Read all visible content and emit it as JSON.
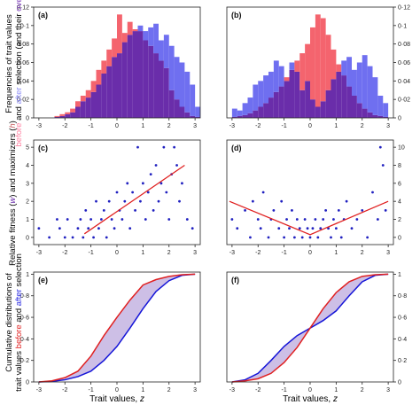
{
  "colors": {
    "before": "#f4646e",
    "after": "#6f6ff0",
    "overlap": "#6a2daa",
    "fitness_line": "#e02020",
    "fitness_points": "#2020c0",
    "band_fill": "#cdbfe6",
    "axis": "#222222"
  },
  "ylabels": {
    "row1_line1": "Frequencies of trait values",
    "row1_before": "before",
    "row1_and": "and",
    "row1_after": "after",
    "row1_rest": "selection (and their",
    "row1_overlap": "overlap",
    "row1_close": ")",
    "row2": "Relative fitness (",
    "row2_w": "w",
    "row2_mid": ") and maximizers (",
    "row2_h": "h",
    "row2_close": ")",
    "row3_line1": "Cumulative distributions of",
    "row3_pre": "trait values",
    "row3_before": "before",
    "row3_and": "and",
    "row3_after": "after",
    "row3_post": "selection"
  },
  "xlabel": "Trait values, z",
  "xlabel_text": "Trait values,",
  "xlabel_z": "z",
  "chart_data": [
    {
      "panel": "(a)",
      "type": "bar",
      "xlim": [
        -3.2,
        3.2
      ],
      "xticks": [
        "-3",
        "-2",
        "-1",
        "0",
        "1",
        "2",
        "3"
      ],
      "ylim": [
        0,
        0.12
      ],
      "yticks": [
        "0",
        "0·02",
        "0·04",
        "0·06",
        "0·08",
        "0·1",
        "0·12"
      ],
      "bin_start": -2.4,
      "bin_width": 0.2,
      "series": [
        {
          "name": "before",
          "values": [
            0.002,
            0.004,
            0.006,
            0.01,
            0.018,
            0.024,
            0.03,
            0.04,
            0.052,
            0.062,
            0.074,
            0.086,
            0.112,
            0.092,
            0.104,
            0.096,
            0.094,
            0.084,
            0.078,
            0.07,
            0.062,
            0.054,
            0.03,
            0.02,
            0.012,
            0.006,
            0.002,
            0.001
          ]
        },
        {
          "name": "after",
          "values": [
            0.001,
            0.002,
            0.004,
            0.006,
            0.012,
            0.018,
            0.022,
            0.028,
            0.036,
            0.048,
            0.056,
            0.066,
            0.07,
            0.082,
            0.09,
            0.094,
            0.1,
            0.094,
            0.098,
            0.102,
            0.084,
            0.09,
            0.078,
            0.066,
            0.06,
            0.05,
            0.036,
            0.012
          ]
        }
      ]
    },
    {
      "panel": "(b)",
      "type": "bar",
      "xlim": [
        -3.2,
        3.2
      ],
      "xticks": [
        "-3",
        "-2",
        "-1",
        "0",
        "1",
        "2",
        "3"
      ],
      "ylim": [
        0,
        0.12
      ],
      "yticks": [
        "0",
        "0·02",
        "0·04",
        "0·06",
        "0·08",
        "0·1",
        "0·12"
      ],
      "bin_start": -3.0,
      "bin_width": 0.2,
      "series": [
        {
          "name": "before",
          "values": [
            0.001,
            0.002,
            0.003,
            0.005,
            0.008,
            0.012,
            0.016,
            0.022,
            0.028,
            0.034,
            0.044,
            0.052,
            0.062,
            0.07,
            0.08,
            0.098,
            0.112,
            0.108,
            0.09,
            0.074,
            0.058,
            0.046,
            0.034,
            0.024,
            0.016,
            0.01,
            0.006,
            0.003,
            0.002,
            0.001
          ]
        },
        {
          "name": "after",
          "values": [
            0.01,
            0.008,
            0.016,
            0.022,
            0.036,
            0.04,
            0.046,
            0.05,
            0.062,
            0.056,
            0.04,
            0.06,
            0.05,
            0.03,
            0.04,
            0.02,
            0.012,
            0.018,
            0.03,
            0.042,
            0.05,
            0.062,
            0.066,
            0.052,
            0.06,
            0.068,
            0.056,
            0.044,
            0.024,
            0.016
          ]
        }
      ]
    },
    {
      "panel": "(c)",
      "type": "scatter",
      "xlim": [
        -3.2,
        3.2
      ],
      "xticks": [
        "-3",
        "-2",
        "-1",
        "0",
        "1",
        "2",
        "3"
      ],
      "ylim": [
        -0.4,
        5.4
      ],
      "yticks": [
        "0",
        "1",
        "2",
        "3",
        "4",
        "5"
      ],
      "points_y_levels": [
        0,
        0.5,
        1,
        1.5,
        2,
        2.5,
        3,
        3.5,
        4,
        5
      ],
      "points": [
        [
          -3.0,
          0.5
        ],
        [
          -2.6,
          0
        ],
        [
          -2.3,
          1
        ],
        [
          -2.2,
          0.5
        ],
        [
          -2.0,
          0
        ],
        [
          -1.9,
          1
        ],
        [
          -1.7,
          0
        ],
        [
          -1.5,
          0.5
        ],
        [
          -1.4,
          1
        ],
        [
          -1.3,
          0
        ],
        [
          -1.2,
          1.5
        ],
        [
          -1.1,
          0.5
        ],
        [
          -1.0,
          1
        ],
        [
          -0.9,
          0
        ],
        [
          -0.8,
          2
        ],
        [
          -0.7,
          0.5
        ],
        [
          -0.6,
          1
        ],
        [
          -0.5,
          1.5
        ],
        [
          -0.4,
          0
        ],
        [
          -0.3,
          2
        ],
        [
          -0.2,
          1
        ],
        [
          -0.1,
          0.5
        ],
        [
          0.0,
          2.5
        ],
        [
          0.1,
          1.5
        ],
        [
          0.2,
          1
        ],
        [
          0.3,
          2
        ],
        [
          0.4,
          3
        ],
        [
          0.5,
          0.5
        ],
        [
          0.6,
          2.5
        ],
        [
          0.7,
          1.5
        ],
        [
          0.8,
          5
        ],
        [
          0.9,
          2
        ],
        [
          1.0,
          3
        ],
        [
          1.1,
          1
        ],
        [
          1.2,
          2.5
        ],
        [
          1.3,
          3.5
        ],
        [
          1.4,
          1.5
        ],
        [
          1.5,
          4
        ],
        [
          1.6,
          2
        ],
        [
          1.7,
          3
        ],
        [
          1.8,
          5
        ],
        [
          1.9,
          2.5
        ],
        [
          2.0,
          1
        ],
        [
          2.1,
          3.5
        ],
        [
          2.2,
          5
        ],
        [
          2.3,
          4
        ],
        [
          2.4,
          2
        ],
        [
          2.5,
          3
        ],
        [
          2.7,
          1
        ],
        [
          2.9,
          0.5
        ]
      ],
      "line": {
        "label": "w",
        "x": [
          -1.25,
          2.6
        ],
        "y": [
          0.2,
          4.0
        ]
      }
    },
    {
      "panel": "(d)",
      "type": "scatter",
      "xlim": [
        -3.2,
        3.2
      ],
      "xticks": [
        "-3",
        "-2",
        "-1",
        "0",
        "1",
        "2",
        "3"
      ],
      "ylim": [
        -0.8,
        10.8
      ],
      "yticks": [
        "0",
        "2",
        "4",
        "6",
        "8",
        "10"
      ],
      "points": [
        [
          -3.0,
          2
        ],
        [
          -2.8,
          1
        ],
        [
          -2.5,
          3
        ],
        [
          -2.3,
          0
        ],
        [
          -2.2,
          4
        ],
        [
          -2.0,
          2
        ],
        [
          -1.9,
          1
        ],
        [
          -1.8,
          5
        ],
        [
          -1.6,
          0
        ],
        [
          -1.5,
          2
        ],
        [
          -1.4,
          3
        ],
        [
          -1.2,
          1
        ],
        [
          -1.1,
          4
        ],
        [
          -1.0,
          0
        ],
        [
          -0.9,
          2
        ],
        [
          -0.8,
          1
        ],
        [
          -0.7,
          3
        ],
        [
          -0.6,
          0
        ],
        [
          -0.5,
          2
        ],
        [
          -0.4,
          1
        ],
        [
          -0.3,
          0
        ],
        [
          -0.2,
          2
        ],
        [
          -0.1,
          1
        ],
        [
          0.0,
          0
        ],
        [
          0.1,
          1
        ],
        [
          0.2,
          2
        ],
        [
          0.3,
          0
        ],
        [
          0.4,
          1
        ],
        [
          0.5,
          2
        ],
        [
          0.6,
          3
        ],
        [
          0.7,
          1
        ],
        [
          0.8,
          0
        ],
        [
          0.9,
          2
        ],
        [
          1.0,
          1
        ],
        [
          1.1,
          3
        ],
        [
          1.2,
          0
        ],
        [
          1.3,
          2
        ],
        [
          1.4,
          4
        ],
        [
          1.6,
          1
        ],
        [
          1.8,
          2
        ],
        [
          2.0,
          3
        ],
        [
          2.2,
          0
        ],
        [
          2.4,
          5
        ],
        [
          2.6,
          2
        ],
        [
          2.7,
          10
        ],
        [
          2.8,
          8
        ],
        [
          2.9,
          3
        ]
      ],
      "line": {
        "label": "w",
        "x": [
          -3.1,
          0.0,
          3.0
        ],
        "y": [
          4.0,
          0.3,
          4.0
        ]
      }
    },
    {
      "panel": "(e)",
      "type": "line",
      "xlim": [
        -3.2,
        3.2
      ],
      "xticks": [
        "-3",
        "-2",
        "-1",
        "0",
        "1",
        "2",
        "3"
      ],
      "ylim": [
        0,
        1.02
      ],
      "yticks": [
        "0",
        "0·2",
        "0·4",
        "0·6",
        "0·8",
        "1"
      ],
      "series": [
        {
          "name": "before",
          "x": [
            -3.0,
            -2.5,
            -2.0,
            -1.5,
            -1.0,
            -0.5,
            0.0,
            0.5,
            1.0,
            1.5,
            2.0,
            2.5,
            3.0
          ],
          "values": [
            0.0,
            0.01,
            0.04,
            0.1,
            0.24,
            0.43,
            0.6,
            0.76,
            0.9,
            0.95,
            0.98,
            0.995,
            1.0
          ]
        },
        {
          "name": "after",
          "x": [
            -3.0,
            -2.5,
            -2.0,
            -1.5,
            -1.0,
            -0.5,
            0.0,
            0.5,
            1.0,
            1.5,
            2.0,
            2.5,
            3.0
          ],
          "values": [
            0.0,
            0.005,
            0.02,
            0.05,
            0.1,
            0.2,
            0.33,
            0.5,
            0.68,
            0.84,
            0.94,
            0.99,
            1.0
          ]
        }
      ]
    },
    {
      "panel": "(f)",
      "type": "line",
      "xlim": [
        -3.2,
        3.2
      ],
      "xticks": [
        "-3",
        "-2",
        "-1",
        "0",
        "1",
        "2",
        "3"
      ],
      "ylim": [
        0,
        1.02
      ],
      "yticks": [
        "0",
        "0·2",
        "0·4",
        "0·6",
        "0·8",
        "1"
      ],
      "series": [
        {
          "name": "before",
          "x": [
            -3.0,
            -2.5,
            -2.0,
            -1.5,
            -1.0,
            -0.5,
            0.0,
            0.5,
            1.0,
            1.5,
            2.0,
            2.5,
            3.0
          ],
          "values": [
            0.0,
            0.01,
            0.03,
            0.08,
            0.18,
            0.32,
            0.5,
            0.68,
            0.83,
            0.93,
            0.98,
            0.995,
            1.0
          ]
        },
        {
          "name": "after",
          "x": [
            -3.0,
            -2.5,
            -2.0,
            -1.5,
            -1.0,
            -0.5,
            0.0,
            0.5,
            1.0,
            1.5,
            2.0,
            2.5,
            3.0
          ],
          "values": [
            0.0,
            0.02,
            0.08,
            0.2,
            0.33,
            0.43,
            0.5,
            0.57,
            0.66,
            0.8,
            0.93,
            0.99,
            1.0
          ]
        }
      ]
    }
  ]
}
